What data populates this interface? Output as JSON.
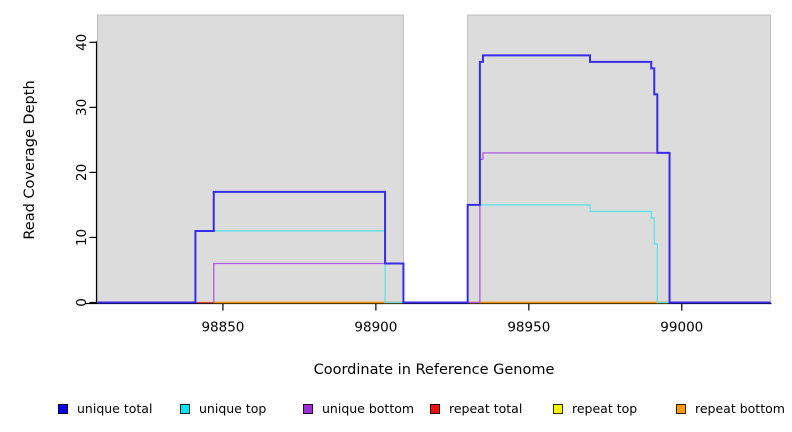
{
  "chart_data": {
    "type": "line",
    "subtype": "step-coverage-plot",
    "title": "",
    "xlabel": "Coordinate in Reference Genome",
    "ylabel": "Read Coverage Depth",
    "xlim": [
      98809,
      99029
    ],
    "ylim": [
      0,
      44.2
    ],
    "x_ticks": [
      98850,
      98900,
      98950,
      99000
    ],
    "y_ticks": [
      0,
      10,
      20,
      30,
      40
    ],
    "grid": false,
    "legend_position": "bottom",
    "background_color": "#ffffff",
    "region_color": "#dcdcdc",
    "region_border_color": "#b4b4b4",
    "axis_color": "#000000",
    "background_regions": [
      {
        "name": "covered-region-left",
        "x0": 98809,
        "x1": 98909
      },
      {
        "name": "covered-region-right",
        "x0": 98930,
        "x1": 99029
      }
    ],
    "series": [
      {
        "name": "repeat top",
        "color": "#f0e800",
        "width": 1.2,
        "points": [
          [
            98809,
            0
          ],
          [
            99029,
            0
          ]
        ]
      },
      {
        "name": "repeat total",
        "color": "#d9404f",
        "width": 1.2,
        "points": [
          [
            98809,
            0
          ],
          [
            99029,
            0
          ]
        ]
      },
      {
        "name": "repeat bottom",
        "color": "#ff9800",
        "width": 1.5,
        "points": [
          [
            98847,
            0
          ],
          [
            99029,
            0
          ]
        ]
      },
      {
        "name": "unique bottom",
        "color": "#ab5ce0",
        "width": 1.3,
        "points": [
          [
            98847,
            0
          ],
          [
            98847,
            6
          ],
          [
            98909,
            6
          ],
          [
            98909,
            0
          ],
          [
            98934,
            0
          ],
          [
            98934,
            22
          ],
          [
            98935,
            22
          ],
          [
            98935,
            23
          ],
          [
            98996,
            23
          ],
          [
            98996,
            0
          ],
          [
            99029,
            0
          ]
        ]
      },
      {
        "name": "unique top",
        "color": "#5fe2e8",
        "width": 1.3,
        "points": [
          [
            98809,
            0
          ],
          [
            98841,
            0
          ],
          [
            98841,
            11
          ],
          [
            98903,
            11
          ],
          [
            98903,
            0
          ],
          [
            98930,
            0
          ],
          [
            98930,
            15
          ],
          [
            98970,
            15
          ],
          [
            98970,
            14
          ],
          [
            98990,
            14
          ],
          [
            98990,
            13
          ],
          [
            98991,
            13
          ],
          [
            98991,
            9
          ],
          [
            98992,
            9
          ],
          [
            98992,
            0
          ],
          [
            99029,
            0
          ]
        ]
      },
      {
        "name": "unique total",
        "color": "#3a2bea",
        "width": 2,
        "points": [
          [
            98809,
            0
          ],
          [
            98841,
            0
          ],
          [
            98841,
            11
          ],
          [
            98847,
            11
          ],
          [
            98847,
            17
          ],
          [
            98903,
            17
          ],
          [
            98903,
            6
          ],
          [
            98909,
            6
          ],
          [
            98909,
            0
          ],
          [
            98930,
            0
          ],
          [
            98930,
            15
          ],
          [
            98934,
            15
          ],
          [
            98934,
            37
          ],
          [
            98935,
            37
          ],
          [
            98935,
            38
          ],
          [
            98970,
            38
          ],
          [
            98970,
            37
          ],
          [
            98990,
            37
          ],
          [
            98990,
            36
          ],
          [
            98991,
            36
          ],
          [
            98991,
            32
          ],
          [
            98992,
            32
          ],
          [
            98992,
            23
          ],
          [
            98996,
            23
          ],
          [
            98996,
            0
          ],
          [
            99029,
            0
          ]
        ]
      }
    ],
    "legend": [
      {
        "label": "unique total",
        "color": "#0b00ee"
      },
      {
        "label": "unique top",
        "color": "#00e5ee"
      },
      {
        "label": "unique bottom",
        "color": "#9c2fd6"
      },
      {
        "label": "repeat total",
        "color": "#ee1111"
      },
      {
        "label": "repeat top",
        "color": "#f5f500"
      },
      {
        "label": "repeat bottom",
        "color": "#ff9d00"
      }
    ]
  }
}
